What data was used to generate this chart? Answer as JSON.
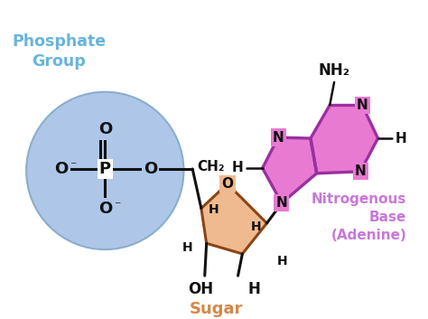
{
  "background_color": "#ffffff",
  "phosphate_circle_color": "#aec6e8",
  "phosphate_circle_edge": "#8aaecc",
  "sugar_color": "#f0ba90",
  "sugar_edge": "#8b4513",
  "base_color": "#e87ad2",
  "base_edge": "#9b30a0",
  "phosphate_label_color": "#68b4dc",
  "sugar_label_color": "#d4884a",
  "base_label_color": "#c878d8",
  "atom_color": "#111111",
  "bond_color": "#111111",
  "phosphate_group_text": "Phosphate\nGroup",
  "nitrogenous_base_text": "Nitrogenous\nBase\n(Adenine)",
  "sugar_text": "Sugar"
}
